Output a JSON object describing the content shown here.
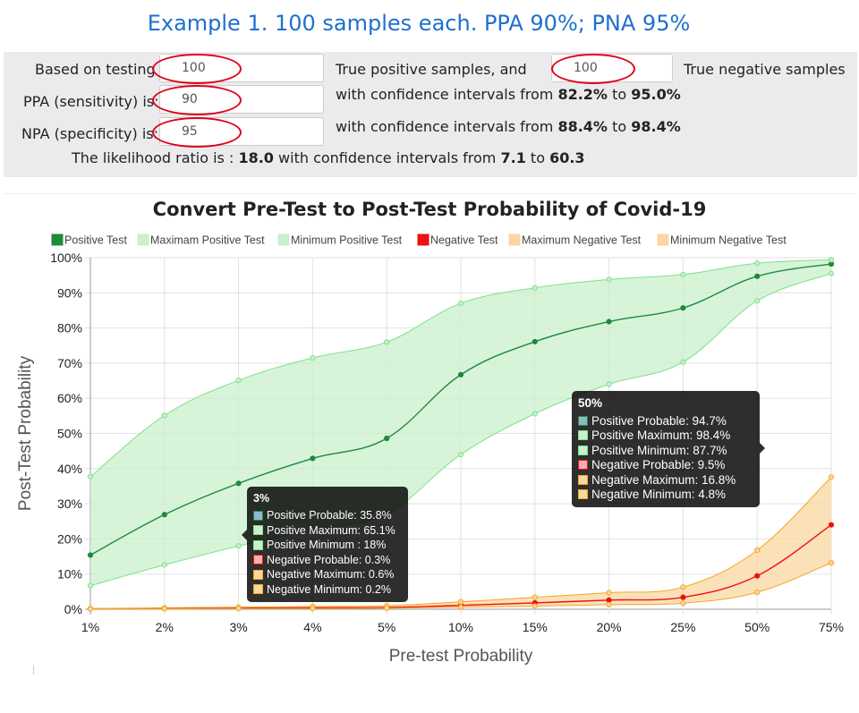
{
  "title": "Example 1.  100 samples each.  PPA 90%;  PNA 95%",
  "form": {
    "based_on_label": "Based on testing",
    "positive_samples_value": "100",
    "true_positive_label": "True positive samples, and",
    "negative_samples_value": "100",
    "true_negative_label": "True negative samples",
    "ppa_label": "PPA (sensitivity) is:",
    "ppa_value": "90",
    "ppa_ci_prefix": "with confidence intervals from",
    "ppa_ci_low": "82.2%",
    "ppa_ci_to": "to",
    "ppa_ci_high": "95.0%",
    "npa_label": "NPA (specificity) is:",
    "npa_value": "95",
    "npa_ci_prefix": "with confidence intervals from",
    "npa_ci_low": "88.4%",
    "npa_ci_to": "to",
    "npa_ci_high": "98.4%",
    "lr_prefix": "The likelihood ratio is :",
    "lr_value": "18.0",
    "lr_mid": "with confidence intervals from",
    "lr_low": "7.1",
    "lr_to": "to",
    "lr_high": "60.3"
  },
  "chart_data": {
    "type": "line",
    "title": "Convert Pre-Test to Post-Test Probability of Covid-19",
    "xlabel": "Pre-test Probability",
    "ylabel": "Post-Test Probability",
    "categories": [
      "1%",
      "2%",
      "3%",
      "4%",
      "5%",
      "10%",
      "15%",
      "20%",
      "25%",
      "50%",
      "75%"
    ],
    "y_ticks": [
      "0%",
      "10%",
      "20%",
      "30%",
      "40%",
      "50%",
      "60%",
      "70%",
      "80%",
      "90%",
      "100%"
    ],
    "ylim": [
      0,
      100
    ],
    "grid": true,
    "legend_position": "top",
    "series": [
      {
        "name": "Positive Test",
        "color": "#1e8a3c",
        "fill": "#1e8a3c",
        "values": [
          15.4,
          26.9,
          35.8,
          42.9,
          48.6,
          66.7,
          76.1,
          81.8,
          85.7,
          94.7,
          98.2
        ]
      },
      {
        "name": "Maximam Positive Test",
        "color": "#7ee08a",
        "fill": "#c9f0cc",
        "values": [
          37.7,
          55.1,
          65.1,
          71.5,
          76.0,
          87.0,
          91.4,
          93.8,
          95.2,
          98.4,
          99.4
        ]
      },
      {
        "name": "Minimum Positive Test",
        "color": "#7ee08a",
        "fill": "#c9f0cc",
        "values": [
          6.7,
          12.6,
          18.0,
          22.8,
          27.1,
          44.0,
          55.6,
          64.0,
          70.3,
          87.7,
          95.5
        ]
      },
      {
        "name": "Negative Test",
        "color": "#ee1111",
        "fill": "#ee1111",
        "values": [
          0.1,
          0.2,
          0.3,
          0.4,
          0.5,
          1.1,
          1.8,
          2.6,
          3.4,
          9.5,
          24.0
        ]
      },
      {
        "name": "Maximum Negative Test",
        "color": "#f5a623",
        "fill": "#fad7a0",
        "values": [
          0.2,
          0.4,
          0.6,
          0.8,
          1.0,
          2.1,
          3.4,
          4.7,
          6.3,
          16.8,
          37.6
        ]
      },
      {
        "name": "Minimum Negative Test",
        "color": "#f5a623",
        "fill": "#fad7a0",
        "values": [
          0.05,
          0.1,
          0.2,
          0.2,
          0.3,
          0.6,
          0.9,
          1.3,
          1.7,
          4.8,
          13.2
        ]
      }
    ],
    "tooltips": [
      {
        "title": "3%",
        "rows": [
          {
            "text": "Positive Probable: 35.8%",
            "color": "#1e8a3c",
            "fill": "#8fb8c9"
          },
          {
            "text": "Positive Maximum: 65.1%",
            "color": "#7ee08a",
            "fill": "#c9f0cc"
          },
          {
            "text": "Positive Minimum : 18%",
            "color": "#7ee08a",
            "fill": "#c9f0cc"
          },
          {
            "text": "Negative Probable: 0.3%",
            "color": "#ee1111",
            "fill": "#f6b0b0"
          },
          {
            "text": "Negative Maximum: 0.6%",
            "color": "#f5a623",
            "fill": "#fad7a0"
          },
          {
            "text": "Negative Minimum: 0.2%",
            "color": "#f5a623",
            "fill": "#fad7a0"
          }
        ]
      },
      {
        "title": "50%",
        "rows": [
          {
            "text": "Positive Probable: 94.7%",
            "color": "#1e8a3c",
            "fill": "#8fb8c9"
          },
          {
            "text": "Positive Maximum: 98.4%",
            "color": "#7ee08a",
            "fill": "#c9f0cc"
          },
          {
            "text": "Positive Minimum: 87.7%",
            "color": "#7ee08a",
            "fill": "#c9f0cc"
          },
          {
            "text": "Negative Probable: 9.5%",
            "color": "#ee1111",
            "fill": "#f6b0b0"
          },
          {
            "text": "Negative Maximum: 16.8%",
            "color": "#f5a623",
            "fill": "#fad7a0"
          },
          {
            "text": "Negative Minimum: 4.8%",
            "color": "#f5a623",
            "fill": "#fad7a0"
          }
        ]
      }
    ]
  }
}
